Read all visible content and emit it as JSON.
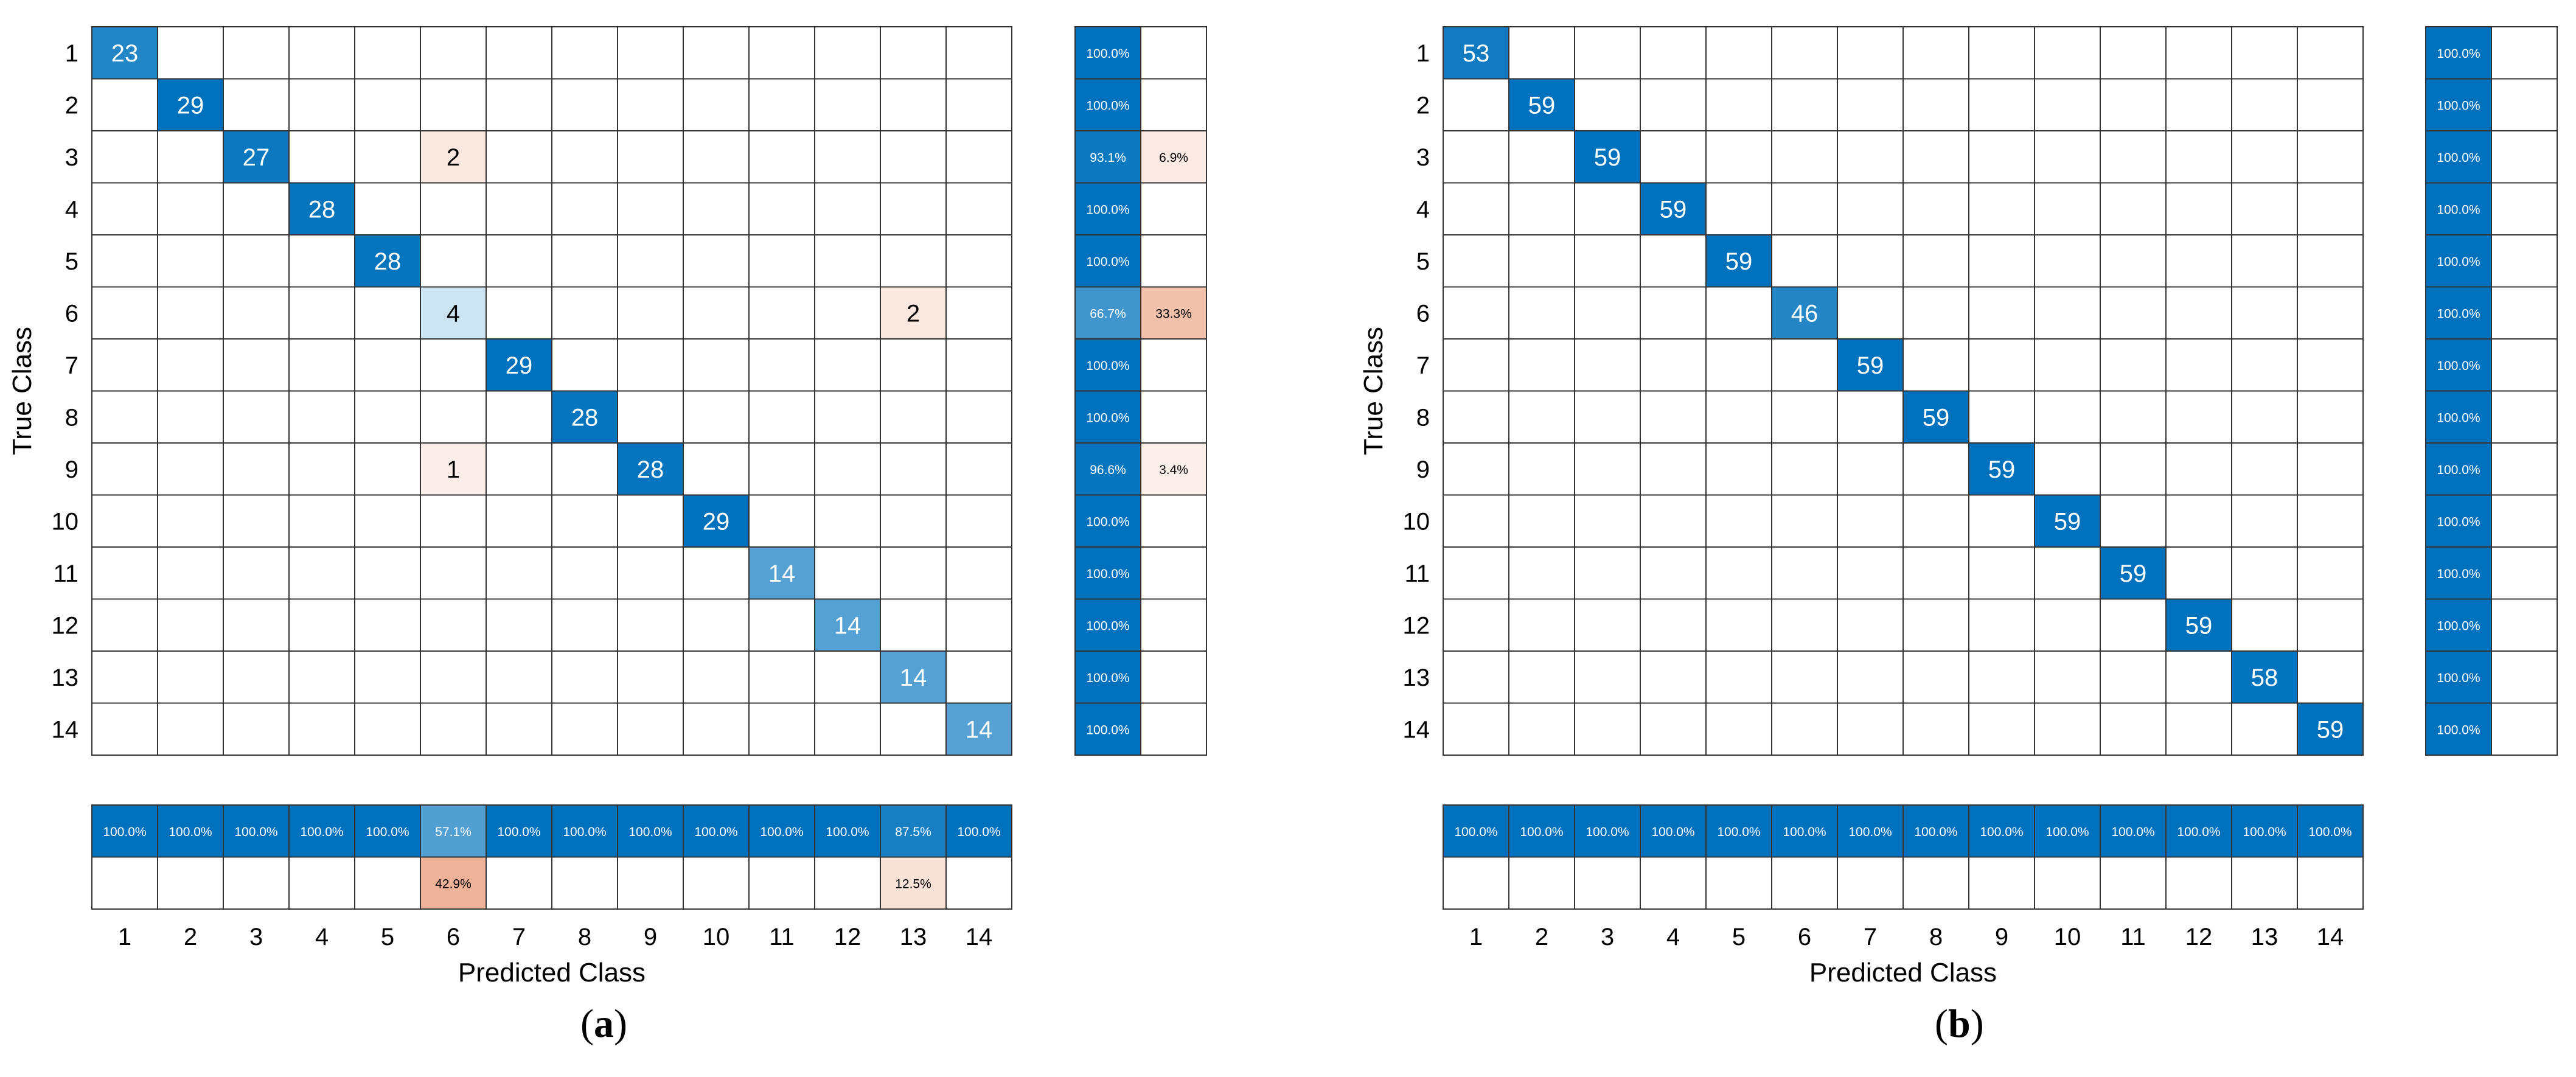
{
  "figure": {
    "panel_labels": [
      {
        "open": "(",
        "letter": "a",
        "close": ")"
      },
      {
        "open": "(",
        "letter": "b",
        "close": ")"
      }
    ]
  },
  "chart_data": [
    {
      "type": "heatmap",
      "panel": "a",
      "title": "",
      "xlabel": "Predicted Class",
      "ylabel": "True Class",
      "classes": [
        "1",
        "2",
        "3",
        "4",
        "5",
        "6",
        "7",
        "8",
        "9",
        "10",
        "11",
        "12",
        "13",
        "14"
      ],
      "cells": [
        {
          "row": 1,
          "col": 1,
          "value": 23,
          "correct": true
        },
        {
          "row": 2,
          "col": 2,
          "value": 29,
          "correct": true
        },
        {
          "row": 3,
          "col": 3,
          "value": 27,
          "correct": true
        },
        {
          "row": 3,
          "col": 6,
          "value": 2,
          "correct": false
        },
        {
          "row": 4,
          "col": 4,
          "value": 28,
          "correct": true
        },
        {
          "row": 5,
          "col": 5,
          "value": 28,
          "correct": true
        },
        {
          "row": 6,
          "col": 6,
          "value": 4,
          "correct": true
        },
        {
          "row": 6,
          "col": 13,
          "value": 2,
          "correct": false
        },
        {
          "row": 7,
          "col": 7,
          "value": 29,
          "correct": true
        },
        {
          "row": 8,
          "col": 8,
          "value": 28,
          "correct": true
        },
        {
          "row": 9,
          "col": 6,
          "value": 1,
          "correct": false
        },
        {
          "row": 9,
          "col": 9,
          "value": 28,
          "correct": true
        },
        {
          "row": 10,
          "col": 10,
          "value": 29,
          "correct": true
        },
        {
          "row": 11,
          "col": 11,
          "value": 14,
          "correct": true
        },
        {
          "row": 12,
          "col": 12,
          "value": 14,
          "correct": true
        },
        {
          "row": 13,
          "col": 13,
          "value": 14,
          "correct": true
        },
        {
          "row": 14,
          "col": 14,
          "value": 14,
          "correct": true
        }
      ],
      "row_summary": [
        {
          "correct": "100.0%",
          "incorrect": ""
        },
        {
          "correct": "100.0%",
          "incorrect": ""
        },
        {
          "correct": "93.1%",
          "incorrect": "6.9%"
        },
        {
          "correct": "100.0%",
          "incorrect": ""
        },
        {
          "correct": "100.0%",
          "incorrect": ""
        },
        {
          "correct": "66.7%",
          "incorrect": "33.3%"
        },
        {
          "correct": "100.0%",
          "incorrect": ""
        },
        {
          "correct": "100.0%",
          "incorrect": ""
        },
        {
          "correct": "96.6%",
          "incorrect": "3.4%"
        },
        {
          "correct": "100.0%",
          "incorrect": ""
        },
        {
          "correct": "100.0%",
          "incorrect": ""
        },
        {
          "correct": "100.0%",
          "incorrect": ""
        },
        {
          "correct": "100.0%",
          "incorrect": ""
        },
        {
          "correct": "100.0%",
          "incorrect": ""
        }
      ],
      "column_summary": [
        {
          "correct": "100.0%",
          "incorrect": ""
        },
        {
          "correct": "100.0%",
          "incorrect": ""
        },
        {
          "correct": "100.0%",
          "incorrect": ""
        },
        {
          "correct": "100.0%",
          "incorrect": ""
        },
        {
          "correct": "100.0%",
          "incorrect": ""
        },
        {
          "correct": "57.1%",
          "incorrect": "42.9%"
        },
        {
          "correct": "100.0%",
          "incorrect": ""
        },
        {
          "correct": "100.0%",
          "incorrect": ""
        },
        {
          "correct": "100.0%",
          "incorrect": ""
        },
        {
          "correct": "100.0%",
          "incorrect": ""
        },
        {
          "correct": "100.0%",
          "incorrect": ""
        },
        {
          "correct": "100.0%",
          "incorrect": ""
        },
        {
          "correct": "87.5%",
          "incorrect": "12.5%"
        },
        {
          "correct": "100.0%",
          "incorrect": ""
        }
      ],
      "colors": {
        "correct": "#0072bd",
        "incorrect": "#d95319",
        "grid": "#333333"
      }
    },
    {
      "type": "heatmap",
      "panel": "b",
      "title": "",
      "xlabel": "Predicted Class",
      "ylabel": "True Class",
      "classes": [
        "1",
        "2",
        "3",
        "4",
        "5",
        "6",
        "7",
        "8",
        "9",
        "10",
        "11",
        "12",
        "13",
        "14"
      ],
      "cells": [
        {
          "row": 1,
          "col": 1,
          "value": 53,
          "correct": true
        },
        {
          "row": 2,
          "col": 2,
          "value": 59,
          "correct": true
        },
        {
          "row": 3,
          "col": 3,
          "value": 59,
          "correct": true
        },
        {
          "row": 4,
          "col": 4,
          "value": 59,
          "correct": true
        },
        {
          "row": 5,
          "col": 5,
          "value": 59,
          "correct": true
        },
        {
          "row": 6,
          "col": 6,
          "value": 46,
          "correct": true
        },
        {
          "row": 7,
          "col": 7,
          "value": 59,
          "correct": true
        },
        {
          "row": 8,
          "col": 8,
          "value": 59,
          "correct": true
        },
        {
          "row": 9,
          "col": 9,
          "value": 59,
          "correct": true
        },
        {
          "row": 10,
          "col": 10,
          "value": 59,
          "correct": true
        },
        {
          "row": 11,
          "col": 11,
          "value": 59,
          "correct": true
        },
        {
          "row": 12,
          "col": 12,
          "value": 59,
          "correct": true
        },
        {
          "row": 13,
          "col": 13,
          "value": 58,
          "correct": true
        },
        {
          "row": 14,
          "col": 14,
          "value": 59,
          "correct": true
        }
      ],
      "row_summary": [
        {
          "correct": "100.0%",
          "incorrect": ""
        },
        {
          "correct": "100.0%",
          "incorrect": ""
        },
        {
          "correct": "100.0%",
          "incorrect": ""
        },
        {
          "correct": "100.0%",
          "incorrect": ""
        },
        {
          "correct": "100.0%",
          "incorrect": ""
        },
        {
          "correct": "100.0%",
          "incorrect": ""
        },
        {
          "correct": "100.0%",
          "incorrect": ""
        },
        {
          "correct": "100.0%",
          "incorrect": ""
        },
        {
          "correct": "100.0%",
          "incorrect": ""
        },
        {
          "correct": "100.0%",
          "incorrect": ""
        },
        {
          "correct": "100.0%",
          "incorrect": ""
        },
        {
          "correct": "100.0%",
          "incorrect": ""
        },
        {
          "correct": "100.0%",
          "incorrect": ""
        },
        {
          "correct": "100.0%",
          "incorrect": ""
        }
      ],
      "column_summary": [
        {
          "correct": "100.0%",
          "incorrect": ""
        },
        {
          "correct": "100.0%",
          "incorrect": ""
        },
        {
          "correct": "100.0%",
          "incorrect": ""
        },
        {
          "correct": "100.0%",
          "incorrect": ""
        },
        {
          "correct": "100.0%",
          "incorrect": ""
        },
        {
          "correct": "100.0%",
          "incorrect": ""
        },
        {
          "correct": "100.0%",
          "incorrect": ""
        },
        {
          "correct": "100.0%",
          "incorrect": ""
        },
        {
          "correct": "100.0%",
          "incorrect": ""
        },
        {
          "correct": "100.0%",
          "incorrect": ""
        },
        {
          "correct": "100.0%",
          "incorrect": ""
        },
        {
          "correct": "100.0%",
          "incorrect": ""
        },
        {
          "correct": "100.0%",
          "incorrect": ""
        },
        {
          "correct": "100.0%",
          "incorrect": ""
        }
      ],
      "colors": {
        "correct": "#0072bd",
        "incorrect": "#d95319",
        "grid": "#333333"
      }
    }
  ]
}
